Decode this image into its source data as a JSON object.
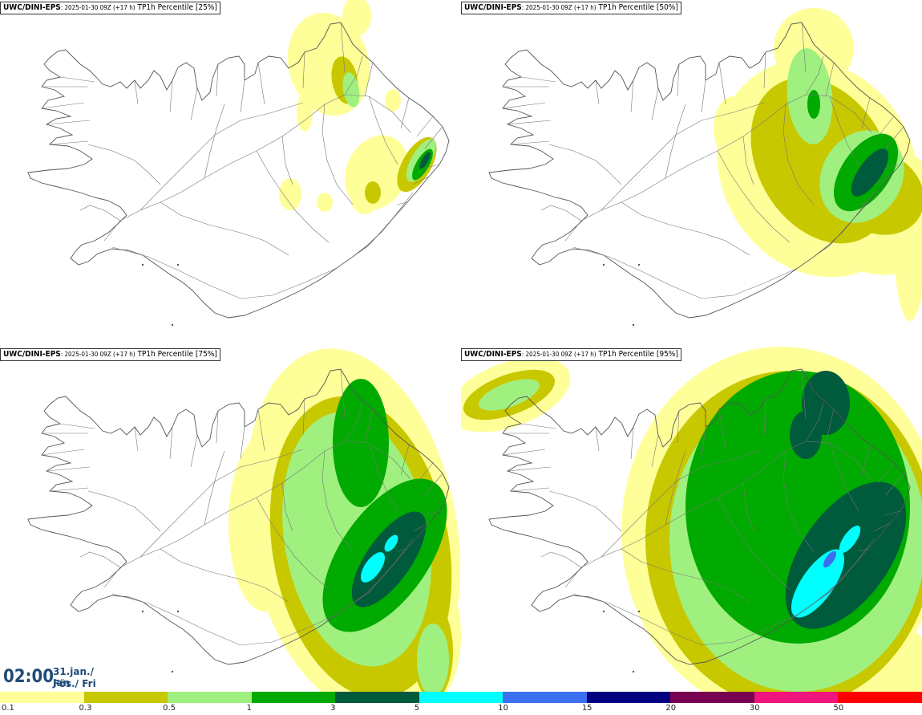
{
  "panels": [
    {
      "model": "UWC/DINI-EPS",
      "run": ": 2025-01-30 09Z (+17 h)",
      "product": " TP1h Percentile [25%]"
    },
    {
      "model": "UWC/DINI-EPS",
      "run": ": 2025-01-30 09Z (+17 h)",
      "product": " TP1h Percentile [50%]"
    },
    {
      "model": "UWC/DINI-EPS",
      "run": ": 2025-01-30 09Z (+17 h)",
      "product": " TP1h Percentile [75%]"
    },
    {
      "model": "UWC/DINI-EPS",
      "run": ": 2025-01-30 09Z (+17 h)",
      "product": " TP1h Percentile [95%]"
    }
  ],
  "valid_time": {
    "clock": "02:00",
    "date_line1": "31.jan./ Jan",
    "date_line2": "Fös./ Fri"
  },
  "legend": {
    "thresholds": [
      "0.1",
      "0.3",
      "0.5",
      "1",
      "3",
      "5",
      "10",
      "15",
      "20",
      "30",
      "50"
    ],
    "colors": [
      "#ffff99",
      "#c8c800",
      "#a0f080",
      "#00aa00",
      "#005a3c",
      "#00ffff",
      "#3c6ef0",
      "#000080",
      "#780050",
      "#f0147d",
      "#ff0000"
    ]
  }
}
